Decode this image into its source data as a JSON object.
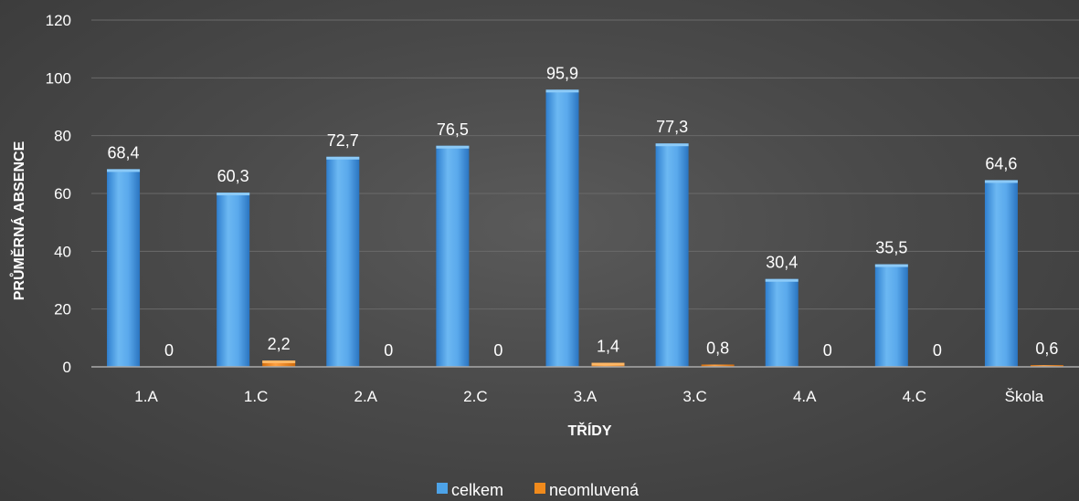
{
  "chart_data": {
    "type": "bar",
    "title": "",
    "xlabel": "TŘÍDY",
    "ylabel": "PRŮMĚRNÁ ABSENCE",
    "ylim": [
      0,
      120
    ],
    "yticks": [
      0,
      20,
      40,
      60,
      80,
      100,
      120
    ],
    "grid": true,
    "legend_position": "bottom",
    "categories": [
      "1.A",
      "1.C",
      "2.A",
      "2.C",
      "3.A",
      "3.C",
      "4.A",
      "4.C",
      "Škola"
    ],
    "series": [
      {
        "name": "celkem",
        "color": "#4da3e8",
        "values": [
          68.4,
          60.3,
          72.7,
          76.5,
          95.9,
          77.3,
          30.4,
          35.5,
          64.6
        ],
        "labels": [
          "68,4",
          "60,3",
          "72,7",
          "76,5",
          "95,9",
          "77,3",
          "30,4",
          "35,5",
          "64,6"
        ]
      },
      {
        "name": "neomluvená",
        "color": "#f08a1c",
        "values": [
          0,
          2.2,
          0,
          0,
          1.4,
          0.8,
          0,
          0,
          0.6
        ],
        "labels": [
          "0",
          "2,2",
          "0",
          "0",
          "1,4",
          "0,8",
          "0",
          "0",
          "0,6"
        ]
      }
    ]
  }
}
